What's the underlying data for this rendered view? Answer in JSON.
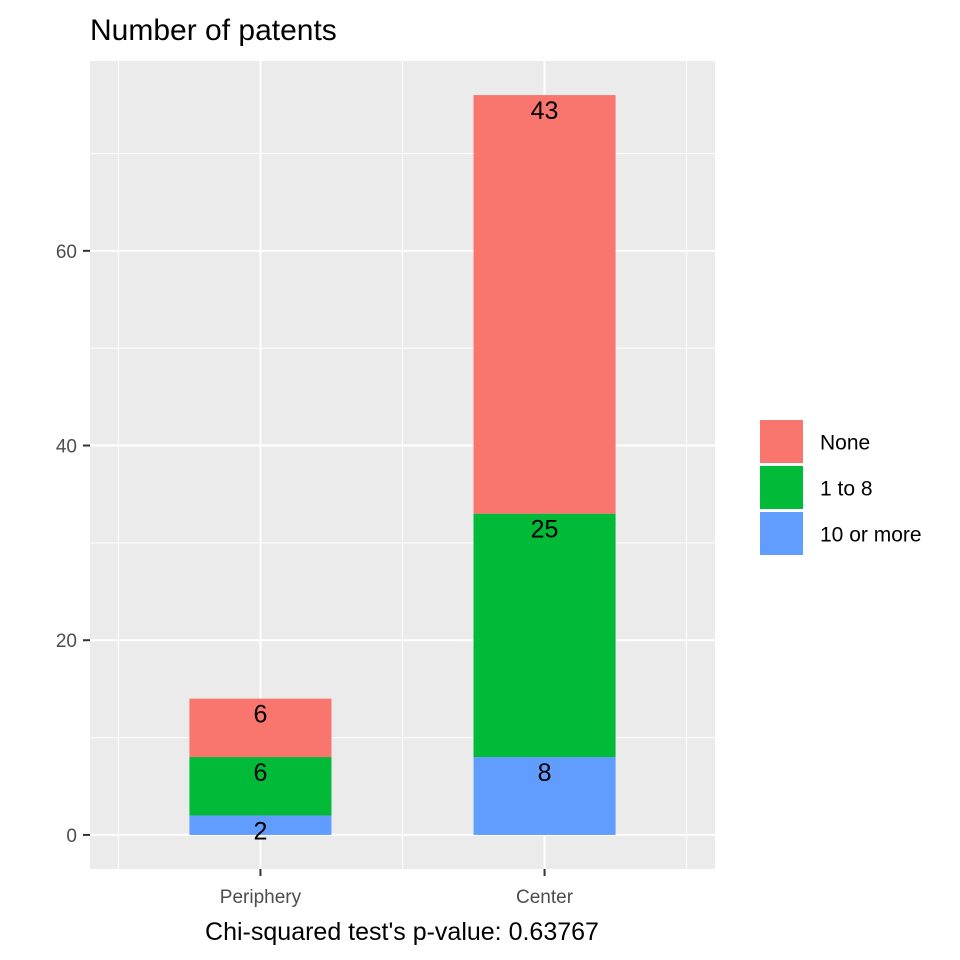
{
  "chart_data": {
    "type": "bar",
    "stacked": true,
    "title": "Number of patents",
    "caption": "Chi-squared test's p-value: 0.63767",
    "xlabel": "",
    "ylabel": "",
    "categories": [
      "Periphery",
      "Center"
    ],
    "series": [
      {
        "name": "10 or more",
        "values": [
          2,
          8
        ],
        "color": "#619CFF"
      },
      {
        "name": "1 to 8",
        "values": [
          6,
          25
        ],
        "color": "#00BA38"
      },
      {
        "name": "None",
        "values": [
          6,
          43
        ],
        "color": "#F8766D"
      }
    ],
    "legend_order": [
      "None",
      "1 to 8",
      "10 or more"
    ],
    "legend_position": "right",
    "yticks": [
      0,
      20,
      40,
      60
    ],
    "ylim": [
      -3.5,
      79.5
    ],
    "grid": true,
    "panel_background": "#EBEBEB",
    "grid_color": "#FFFFFF"
  }
}
